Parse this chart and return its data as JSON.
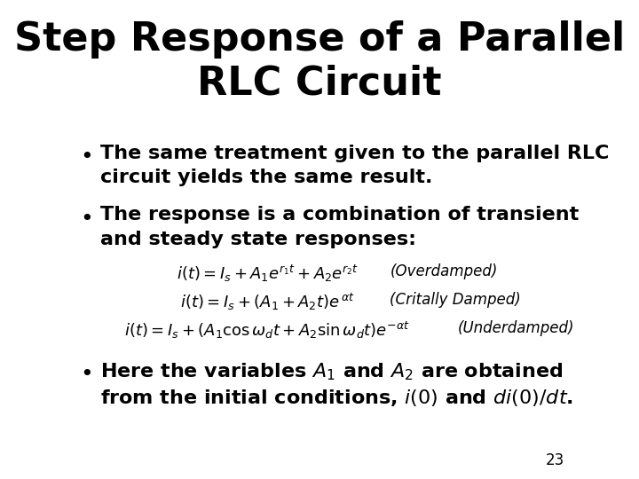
{
  "title": "Step Response of a Parallel\nRLC Circuit",
  "title_fontsize": 32,
  "title_fontweight": "bold",
  "background_color": "#ffffff",
  "text_color": "#000000",
  "bullet1": "The same treatment given to the parallel RLC\ncircuit yields the same result.",
  "bullet2": "The response is a combination of transient\nand steady state responses:",
  "eq1": "$i(t) = I_s + A_1 e^{r_1 t} + A_2 e^{r_2 t}$",
  "eq1_label": "(Overdamped)",
  "eq2": "$i(t) = I_s + (A_1 + A_2 t)e^{\\,\\alpha t}$",
  "eq2_label": "(Critally Damped)",
  "eq3": "$i(t) = I_s + (A_1 \\cos\\omega_d t + A_2 \\sin\\omega_d t)e^{-\\alpha t}$",
  "eq3_label": "(Underdamped)",
  "bullet3_line1": "Here the variables $\\mathbf{\\mathit{A_1}}$ and $\\mathbf{\\mathit{A_2}}$ are obtained",
  "bullet3_line2": "from the initial conditions, $\\mathbf{\\mathit{i(0)}}$ and $\\mathbf{\\mathit{di(0)/dt}}$.",
  "page_number": "23",
  "bullet_fontsize": 16,
  "eq_fontsize": 13,
  "label_fontsize": 12
}
